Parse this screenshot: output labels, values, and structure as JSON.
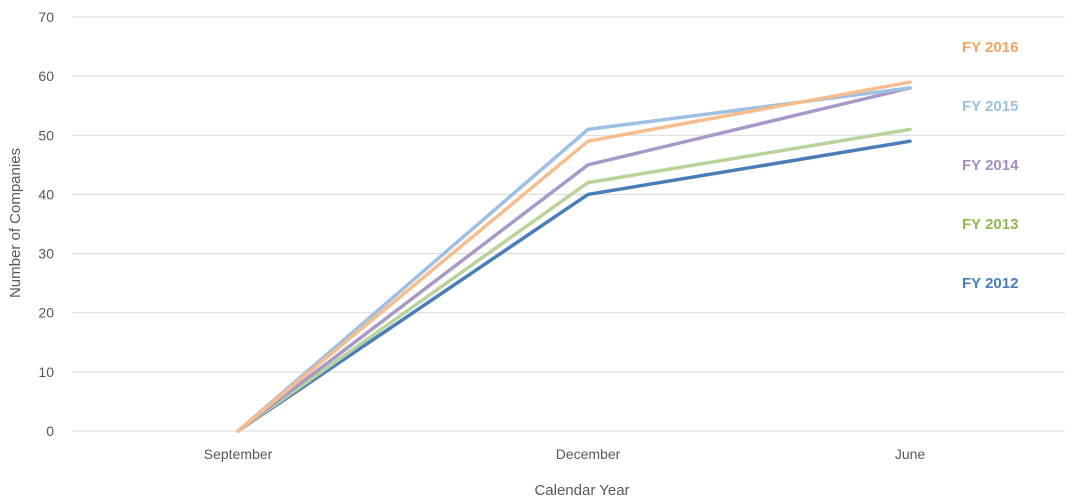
{
  "chart_data": {
    "type": "line",
    "title": "",
    "xlabel": "Calendar Year",
    "ylabel": "Number of Companies",
    "categories": [
      "September",
      "December",
      "June"
    ],
    "ylim": [
      0,
      70
    ],
    "yticks": [
      0,
      10,
      20,
      30,
      40,
      50,
      60,
      70
    ],
    "grid": true,
    "legend": "direct labels at right",
    "series": [
      {
        "name": "FY 2012",
        "color": "#4a7ebb",
        "values": [
          0,
          40,
          49
        ]
      },
      {
        "name": "FY 2013",
        "color": "#b9d49a",
        "values": [
          0,
          42,
          51
        ]
      },
      {
        "name": "FY 2014",
        "color": "#a899c6",
        "values": [
          0,
          45,
          58
        ]
      },
      {
        "name": "FY 2015",
        "color": "#9dc0e3",
        "values": [
          0,
          51,
          58
        ]
      },
      {
        "name": "FY 2016",
        "color": "#f8bd8d",
        "values": [
          0,
          49,
          59
        ]
      }
    ],
    "label_colors": {
      "FY 2012": "#4a7ebb",
      "FY 2013": "#8fb84e",
      "FY 2014": "#a48fc4",
      "FY 2015": "#9dc0e3",
      "FY 2016": "#f4a460"
    },
    "label_order_top_to_bottom": [
      "FY 2016",
      "FY 2015",
      "FY 2014",
      "FY 2013",
      "FY 2012"
    ]
  }
}
